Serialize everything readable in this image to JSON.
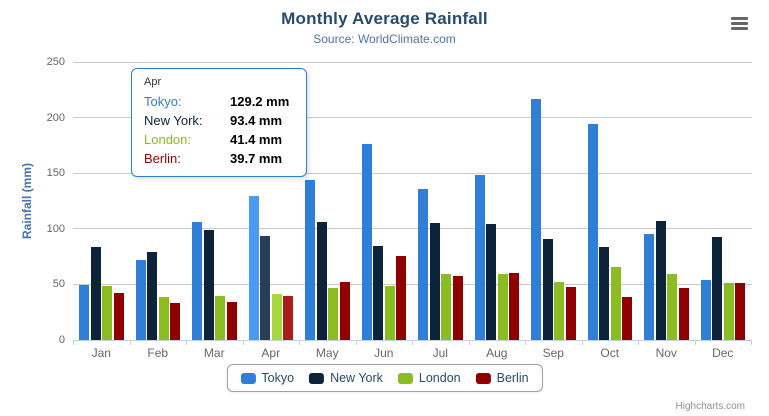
{
  "credits": "Highcharts.com",
  "page_background": "#ffffff",
  "chart_data": {
    "type": "bar",
    "title": "Monthly Average Rainfall",
    "subtitle": "Source: WorldClimate.com",
    "categories": [
      "Jan",
      "Feb",
      "Mar",
      "Apr",
      "May",
      "Jun",
      "Jul",
      "Aug",
      "Sep",
      "Oct",
      "Nov",
      "Dec"
    ],
    "series": [
      {
        "name": "Tokyo",
        "color": "#2f7ed8",
        "values": [
          49.9,
          71.5,
          106.4,
          129.2,
          144.0,
          176.0,
          135.6,
          148.5,
          216.4,
          194.1,
          95.6,
          54.4
        ]
      },
      {
        "name": "New York",
        "color": "#0d233a",
        "values": [
          83.6,
          78.8,
          98.5,
          93.4,
          106.0,
          84.5,
          105.0,
          104.3,
          91.2,
          83.5,
          106.6,
          92.3
        ]
      },
      {
        "name": "London",
        "color": "#8bbc21",
        "values": [
          48.9,
          38.8,
          39.3,
          41.4,
          47.0,
          48.3,
          59.0,
          59.6,
          52.4,
          65.2,
          59.3,
          51.2
        ]
      },
      {
        "name": "Berlin",
        "color": "#910000",
        "values": [
          42.4,
          33.2,
          34.5,
          39.7,
          52.6,
          75.5,
          57.4,
          60.4,
          47.6,
          39.1,
          46.8,
          51.1
        ]
      }
    ],
    "xlabel": "",
    "ylabel": "Rainfall (mm)",
    "ylim": [
      0,
      250
    ],
    "ytick_step": 50,
    "grid": true,
    "legend_position": "bottom"
  },
  "tooltip": {
    "header": "Apr",
    "highlighted_category": "Apr",
    "border_color": "#2f7ed8",
    "rows": [
      {
        "series": "Tokyo",
        "label": "Tokyo:",
        "value": "129.2 mm"
      },
      {
        "series": "New York",
        "label": "New York:",
        "value": "93.4 mm"
      },
      {
        "series": "London",
        "label": "London:",
        "value": "41.4 mm"
      },
      {
        "series": "Berlin",
        "label": "Berlin:",
        "value": "39.7 mm"
      }
    ]
  },
  "icons": {
    "context_menu": "hamburger-menu-icon"
  },
  "colors": {
    "title": "#274b6d",
    "subtitle": "#4d759e",
    "axis_labels": "#666666",
    "yaxis_title": "#4572a7",
    "gridline": "#c9c9c9",
    "axis_line": "#c0d0e0",
    "legend_border": "#a0a0a0",
    "credits": "#909090"
  }
}
